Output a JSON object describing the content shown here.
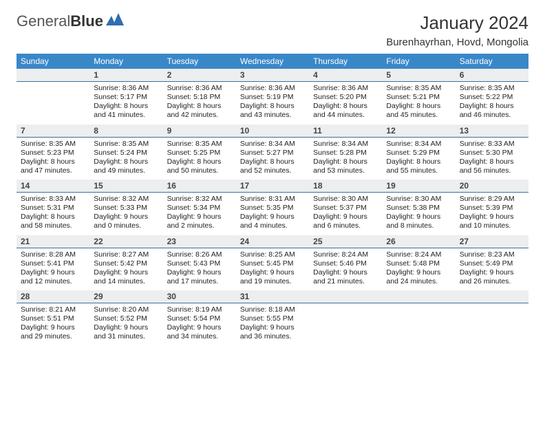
{
  "brand": {
    "text1": "General",
    "text2": "Blue"
  },
  "title": "January 2024",
  "location": "Burenhayrhan, Hovd, Mongolia",
  "colors": {
    "header_bg": "#3a87c8",
    "numbar_bg": "#eceeef",
    "numbar_border": "#3a6fa0"
  },
  "day_names": [
    "Sunday",
    "Monday",
    "Tuesday",
    "Wednesday",
    "Thursday",
    "Friday",
    "Saturday"
  ],
  "first_weekday": 1,
  "days": [
    {
      "n": 1,
      "sr": "8:36 AM",
      "ss": "5:17 PM",
      "dl": "8 hours and 41 minutes."
    },
    {
      "n": 2,
      "sr": "8:36 AM",
      "ss": "5:18 PM",
      "dl": "8 hours and 42 minutes."
    },
    {
      "n": 3,
      "sr": "8:36 AM",
      "ss": "5:19 PM",
      "dl": "8 hours and 43 minutes."
    },
    {
      "n": 4,
      "sr": "8:36 AM",
      "ss": "5:20 PM",
      "dl": "8 hours and 44 minutes."
    },
    {
      "n": 5,
      "sr": "8:35 AM",
      "ss": "5:21 PM",
      "dl": "8 hours and 45 minutes."
    },
    {
      "n": 6,
      "sr": "8:35 AM",
      "ss": "5:22 PM",
      "dl": "8 hours and 46 minutes."
    },
    {
      "n": 7,
      "sr": "8:35 AM",
      "ss": "5:23 PM",
      "dl": "8 hours and 47 minutes."
    },
    {
      "n": 8,
      "sr": "8:35 AM",
      "ss": "5:24 PM",
      "dl": "8 hours and 49 minutes."
    },
    {
      "n": 9,
      "sr": "8:35 AM",
      "ss": "5:25 PM",
      "dl": "8 hours and 50 minutes."
    },
    {
      "n": 10,
      "sr": "8:34 AM",
      "ss": "5:27 PM",
      "dl": "8 hours and 52 minutes."
    },
    {
      "n": 11,
      "sr": "8:34 AM",
      "ss": "5:28 PM",
      "dl": "8 hours and 53 minutes."
    },
    {
      "n": 12,
      "sr": "8:34 AM",
      "ss": "5:29 PM",
      "dl": "8 hours and 55 minutes."
    },
    {
      "n": 13,
      "sr": "8:33 AM",
      "ss": "5:30 PM",
      "dl": "8 hours and 56 minutes."
    },
    {
      "n": 14,
      "sr": "8:33 AM",
      "ss": "5:31 PM",
      "dl": "8 hours and 58 minutes."
    },
    {
      "n": 15,
      "sr": "8:32 AM",
      "ss": "5:33 PM",
      "dl": "9 hours and 0 minutes."
    },
    {
      "n": 16,
      "sr": "8:32 AM",
      "ss": "5:34 PM",
      "dl": "9 hours and 2 minutes."
    },
    {
      "n": 17,
      "sr": "8:31 AM",
      "ss": "5:35 PM",
      "dl": "9 hours and 4 minutes."
    },
    {
      "n": 18,
      "sr": "8:30 AM",
      "ss": "5:37 PM",
      "dl": "9 hours and 6 minutes."
    },
    {
      "n": 19,
      "sr": "8:30 AM",
      "ss": "5:38 PM",
      "dl": "9 hours and 8 minutes."
    },
    {
      "n": 20,
      "sr": "8:29 AM",
      "ss": "5:39 PM",
      "dl": "9 hours and 10 minutes."
    },
    {
      "n": 21,
      "sr": "8:28 AM",
      "ss": "5:41 PM",
      "dl": "9 hours and 12 minutes."
    },
    {
      "n": 22,
      "sr": "8:27 AM",
      "ss": "5:42 PM",
      "dl": "9 hours and 14 minutes."
    },
    {
      "n": 23,
      "sr": "8:26 AM",
      "ss": "5:43 PM",
      "dl": "9 hours and 17 minutes."
    },
    {
      "n": 24,
      "sr": "8:25 AM",
      "ss": "5:45 PM",
      "dl": "9 hours and 19 minutes."
    },
    {
      "n": 25,
      "sr": "8:24 AM",
      "ss": "5:46 PM",
      "dl": "9 hours and 21 minutes."
    },
    {
      "n": 26,
      "sr": "8:24 AM",
      "ss": "5:48 PM",
      "dl": "9 hours and 24 minutes."
    },
    {
      "n": 27,
      "sr": "8:23 AM",
      "ss": "5:49 PM",
      "dl": "9 hours and 26 minutes."
    },
    {
      "n": 28,
      "sr": "8:21 AM",
      "ss": "5:51 PM",
      "dl": "9 hours and 29 minutes."
    },
    {
      "n": 29,
      "sr": "8:20 AM",
      "ss": "5:52 PM",
      "dl": "9 hours and 31 minutes."
    },
    {
      "n": 30,
      "sr": "8:19 AM",
      "ss": "5:54 PM",
      "dl": "9 hours and 34 minutes."
    },
    {
      "n": 31,
      "sr": "8:18 AM",
      "ss": "5:55 PM",
      "dl": "9 hours and 36 minutes."
    }
  ],
  "labels": {
    "sunrise": "Sunrise:",
    "sunset": "Sunset:",
    "daylight": "Daylight:"
  }
}
